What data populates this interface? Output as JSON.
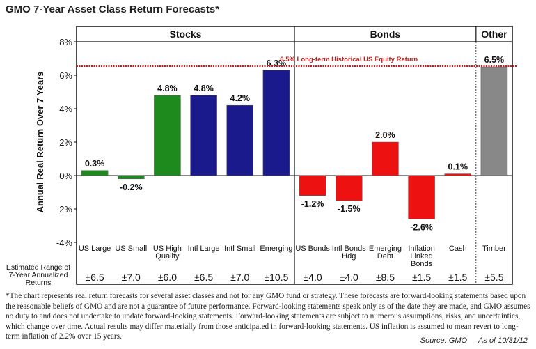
{
  "chart_data": {
    "type": "bar",
    "title": "GMO 7-Year Asset Class Return Forecasts*",
    "ylabel": "Annual Real Return Over 7 Years",
    "ylim": [
      -4,
      8
    ],
    "yticks": [
      "-4%",
      "-2%",
      "0%",
      "2%",
      "4%",
      "6%",
      "8%"
    ],
    "ytick_values": [
      -4,
      -2,
      0,
      2,
      4,
      6,
      8
    ],
    "groups": [
      {
        "name": "Stocks",
        "count": 6
      },
      {
        "name": "Bonds",
        "count": 5
      },
      {
        "name": "Other",
        "count": 1
      }
    ],
    "categories": [
      "US Large",
      "US Small",
      "US High Quality",
      "Intl Large",
      "Intl Small",
      "Emerging",
      "US Bonds",
      "Intl Bonds Hdg",
      "Emerging Debt",
      "Inflation Linked Bonds",
      "Cash",
      "Timber"
    ],
    "category_lines": [
      [
        "US Large"
      ],
      [
        "US Small"
      ],
      [
        "US High",
        "Quality"
      ],
      [
        "Intl Large"
      ],
      [
        "Intl Small"
      ],
      [
        "Emerging"
      ],
      [
        "US Bonds"
      ],
      [
        "Intl Bonds",
        "Hdg"
      ],
      [
        "Emerging",
        "Debt"
      ],
      [
        "Inflation",
        "Linked",
        "Bonds"
      ],
      [
        "Cash"
      ],
      [
        "Timber"
      ]
    ],
    "values": [
      0.3,
      -0.2,
      4.8,
      4.8,
      4.2,
      6.3,
      -1.2,
      -1.5,
      2.0,
      -2.6,
      0.1,
      6.5
    ],
    "value_labels": [
      "0.3%",
      "-0.2%",
      "4.8%",
      "4.8%",
      "4.2%",
      "6.3%",
      "-1.2%",
      "-1.5%",
      "2.0%",
      "-2.6%",
      "0.1%",
      "6.5%"
    ],
    "colors": [
      "#1e8a1e",
      "#1e8a1e",
      "#1e8a1e",
      "#1a1a8c",
      "#1a1a8c",
      "#1a1a8c",
      "#ee1111",
      "#ee1111",
      "#ee1111",
      "#ee1111",
      "#ee1111",
      "#888888"
    ],
    "ranges_label": [
      "Estimated Range of",
      "7-Year Annualized",
      "Returns"
    ],
    "ranges": [
      "±6.5",
      "±7.0",
      "±6.0",
      "±6.5",
      "±7.0",
      "±10.5",
      "±4.0",
      "±4.0",
      "±8.5",
      "±1.5",
      "±1.5",
      "±5.5"
    ],
    "reference_line": {
      "value": 6.5,
      "label": "6.5% Long-term Historical US Equity Return",
      "color": "#c41e1e"
    }
  },
  "footnote": "*The chart represents real return forecasts for several asset classes and not for any GMO fund or strategy. These forecasts are forward-looking statements based upon the reasonable beliefs of GMO and are not a guarantee of future performance. Forward-looking statements speak only as of the date they are made, and GMO assumes no duty to and does not undertake to update forward-looking statements. Forward-looking statements are subject to numerous assumptions, risks, and uncertainties, which change over time. Actual results may differ materially from those anticipated in forward-looking statements. US inflation is assumed to mean revert to long-term inflation of 2.2% over 15 years.",
  "source": "Source: GMO",
  "as_of": "As of 10/31/12"
}
